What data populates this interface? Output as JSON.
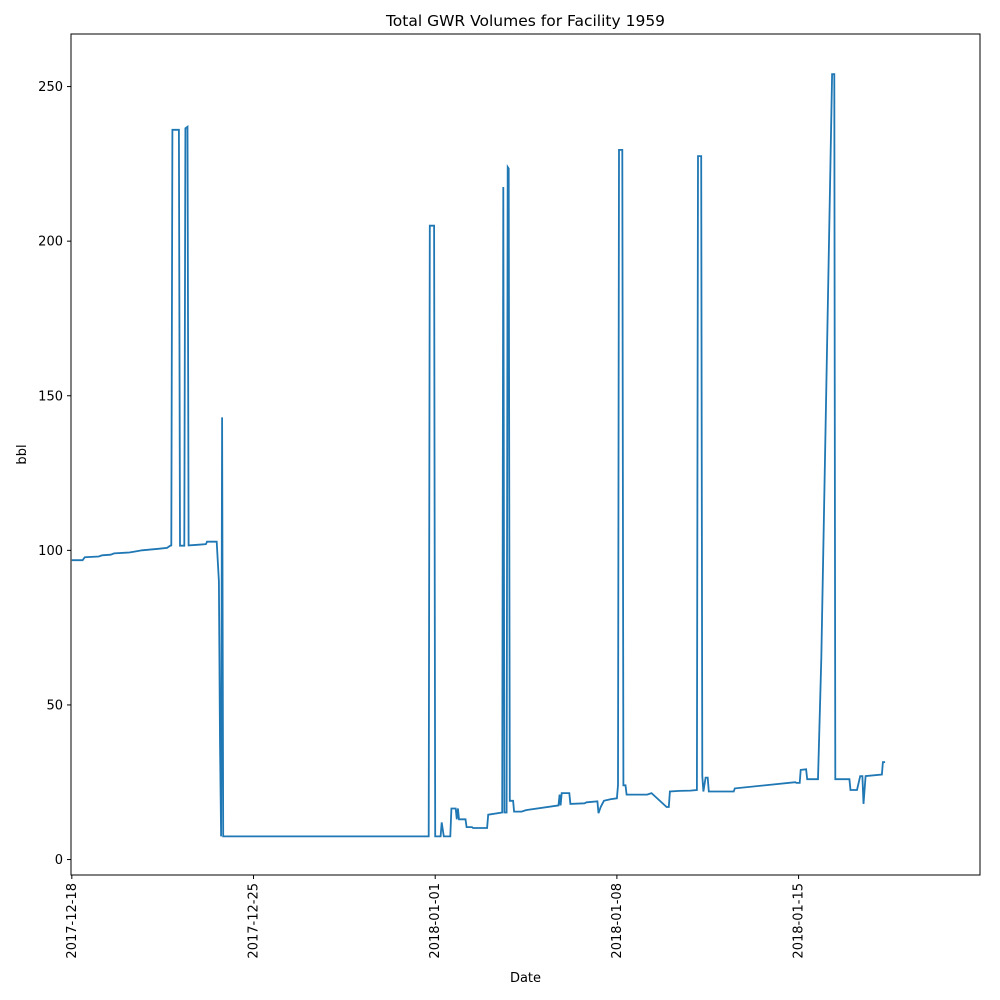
{
  "chart_data": {
    "type": "line",
    "title": "Total GWR Volumes for Facility 1959",
    "xlabel": "Date",
    "ylabel": "bbl",
    "x_axis_type": "date",
    "xlim": [
      "2017-12-17T23:15",
      "2018-01-21T23:45"
    ],
    "ylim": [
      -5,
      267
    ],
    "yticks": [
      0,
      50,
      100,
      150,
      200,
      250
    ],
    "xticks": [
      "2017-12-18",
      "2017-12-25",
      "2018-01-01",
      "2018-01-08",
      "2018-01-15"
    ],
    "grid": false,
    "legend": "none",
    "line_color": "#1f77b4",
    "series": [
      {
        "points": [
          [
            "2017-12-18T00:00",
            96.8
          ],
          [
            "2017-12-18T10:00",
            96.8
          ],
          [
            "2017-12-18T12:00",
            97.8
          ],
          [
            "2017-12-19T01:00",
            98.0
          ],
          [
            "2017-12-19T04:00",
            98.4
          ],
          [
            "2017-12-19T12:00",
            98.6
          ],
          [
            "2017-12-19T15:00",
            99.0
          ],
          [
            "2017-12-20T05:00",
            99.3
          ],
          [
            "2017-12-20T10:00",
            99.6
          ],
          [
            "2017-12-20T17:00",
            100.0
          ],
          [
            "2017-12-21T08:00",
            100.5
          ],
          [
            "2017-12-21T16:00",
            100.8
          ],
          [
            "2017-12-21T19:00",
            101.5
          ],
          [
            "2017-12-21T20:00",
            101.6
          ],
          [
            "2017-12-21T21:00",
            236.0
          ],
          [
            "2017-12-22T03:00",
            236.0
          ],
          [
            "2017-12-22T04:00",
            101.5
          ],
          [
            "2017-12-22T08:00",
            101.5
          ],
          [
            "2017-12-22T09:00",
            236.5
          ],
          [
            "2017-12-22T11:00",
            237.0
          ],
          [
            "2017-12-22T12:00",
            101.6
          ],
          [
            "2017-12-22T20:00",
            101.8
          ],
          [
            "2017-12-23T04:00",
            102.0
          ],
          [
            "2017-12-23T05:00",
            102.8
          ],
          [
            "2017-12-23T14:00",
            102.8
          ],
          [
            "2017-12-23T16:00",
            90.0
          ],
          [
            "2017-12-23T17:00",
            38.0
          ],
          [
            "2017-12-23T18:00",
            7.5
          ],
          [
            "2017-12-23T19:00",
            143.0
          ],
          [
            "2017-12-23T20:00",
            7.5
          ],
          [
            "2017-12-31T18:00",
            7.5
          ],
          [
            "2017-12-31T19:00",
            205.0
          ],
          [
            "2017-12-31T23:00",
            205.0
          ],
          [
            "2018-01-01T00:00",
            7.5
          ],
          [
            "2018-01-01T05:00",
            7.5
          ],
          [
            "2018-01-01T06:00",
            12.0
          ],
          [
            "2018-01-01T08:00",
            7.5
          ],
          [
            "2018-01-01T14:00",
            7.5
          ],
          [
            "2018-01-01T15:00",
            16.5
          ],
          [
            "2018-01-01T19:00",
            16.5
          ],
          [
            "2018-01-01T20:00",
            13.0
          ],
          [
            "2018-01-01T21:00",
            16.5
          ],
          [
            "2018-01-01T22:00",
            13.0
          ],
          [
            "2018-01-02T04:00",
            13.0
          ],
          [
            "2018-01-02T05:00",
            10.5
          ],
          [
            "2018-01-02T10:00",
            10.5
          ],
          [
            "2018-01-02T11:00",
            10.2
          ],
          [
            "2018-01-03T00:00",
            10.2
          ],
          [
            "2018-01-03T01:00",
            14.5
          ],
          [
            "2018-01-03T14:00",
            15.2
          ],
          [
            "2018-01-03T15:00",
            217.5
          ],
          [
            "2018-01-03T16:00",
            15.2
          ],
          [
            "2018-01-03T18:00",
            15.2
          ],
          [
            "2018-01-03T19:00",
            224.0
          ],
          [
            "2018-01-03T20:00",
            223.5
          ],
          [
            "2018-01-03T21:00",
            19.0
          ],
          [
            "2018-01-04T00:00",
            19.0
          ],
          [
            "2018-01-04T01:00",
            15.5
          ],
          [
            "2018-01-04T08:00",
            15.5
          ],
          [
            "2018-01-04T12:00",
            16.0
          ],
          [
            "2018-01-05T18:00",
            17.5
          ],
          [
            "2018-01-05T19:00",
            21.0
          ],
          [
            "2018-01-05T20:00",
            17.5
          ],
          [
            "2018-01-05T21:00",
            21.5
          ],
          [
            "2018-01-06T04:00",
            21.5
          ],
          [
            "2018-01-06T05:00",
            18.0
          ],
          [
            "2018-01-06T18:00",
            18.2
          ],
          [
            "2018-01-06T20:00",
            18.5
          ],
          [
            "2018-01-07T06:00",
            18.8
          ],
          [
            "2018-01-07T07:00",
            15.0
          ],
          [
            "2018-01-07T09:00",
            17.0
          ],
          [
            "2018-01-07T12:00",
            19.0
          ],
          [
            "2018-01-07T18:00",
            19.5
          ],
          [
            "2018-01-08T00:00",
            19.8
          ],
          [
            "2018-01-08T01:00",
            24.0
          ],
          [
            "2018-01-08T02:00",
            229.5
          ],
          [
            "2018-01-08T05:00",
            229.5
          ],
          [
            "2018-01-08T06:00",
            24.0
          ],
          [
            "2018-01-08T08:00",
            24.0
          ],
          [
            "2018-01-08T09:00",
            21.0
          ],
          [
            "2018-01-09T04:00",
            21.0
          ],
          [
            "2018-01-09T08:00",
            21.5
          ],
          [
            "2018-01-09T22:00",
            17.0
          ],
          [
            "2018-01-10T00:00",
            17.0
          ],
          [
            "2018-01-10T01:00",
            22.0
          ],
          [
            "2018-01-10T10:00",
            22.2
          ],
          [
            "2018-01-10T20:00",
            22.3
          ],
          [
            "2018-01-11T02:00",
            22.5
          ],
          [
            "2018-01-11T03:00",
            227.5
          ],
          [
            "2018-01-11T06:00",
            227.5
          ],
          [
            "2018-01-11T07:00",
            27.0
          ],
          [
            "2018-01-11T08:00",
            22.0
          ],
          [
            "2018-01-11T10:00",
            26.5
          ],
          [
            "2018-01-11T12:00",
            26.5
          ],
          [
            "2018-01-11T13:00",
            22.0
          ],
          [
            "2018-01-12T12:00",
            22.0
          ],
          [
            "2018-01-12T13:00",
            23.0
          ],
          [
            "2018-01-14T21:00",
            25.0
          ],
          [
            "2018-01-14T22:00",
            24.8
          ],
          [
            "2018-01-15T01:00",
            24.8
          ],
          [
            "2018-01-15T02:00",
            29.0
          ],
          [
            "2018-01-15T07:00",
            29.2
          ],
          [
            "2018-01-15T08:00",
            26.0
          ],
          [
            "2018-01-15T18:00",
            26.0
          ],
          [
            "2018-01-15T21:00",
            65.0
          ],
          [
            "2018-01-16T07:00",
            254.0
          ],
          [
            "2018-01-16T09:00",
            254.0
          ],
          [
            "2018-01-16T10:00",
            26.0
          ],
          [
            "2018-01-16T23:00",
            26.0
          ],
          [
            "2018-01-17T00:00",
            22.5
          ],
          [
            "2018-01-17T06:00",
            22.5
          ],
          [
            "2018-01-17T09:00",
            27.0
          ],
          [
            "2018-01-17T11:00",
            27.0
          ],
          [
            "2018-01-17T12:00",
            18.0
          ],
          [
            "2018-01-17T14:00",
            27.0
          ],
          [
            "2018-01-18T05:00",
            27.5
          ],
          [
            "2018-01-18T06:00",
            31.5
          ],
          [
            "2018-01-18T08:00",
            31.5
          ]
        ]
      }
    ]
  }
}
